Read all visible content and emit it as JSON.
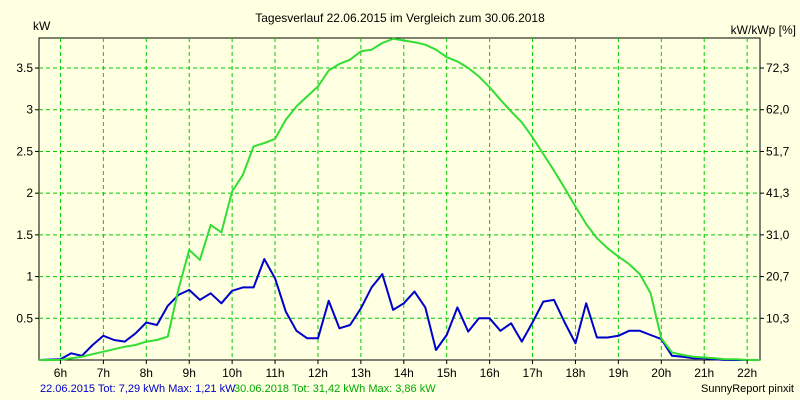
{
  "chart_data": {
    "type": "line",
    "title": "Tagesverlauf 22.06.2015 im Vergleich zum 30.06.2018",
    "ylabel_left": "kW",
    "ylabel_right": "kW/kWp [%]",
    "x_tick_labels": [
      "6h",
      "7h",
      "8h",
      "9h",
      "10h",
      "11h",
      "12h",
      "13h",
      "14h",
      "15h",
      "16h",
      "17h",
      "18h",
      "19h",
      "20h",
      "21h",
      "22h"
    ],
    "x_ticks": [
      6,
      7,
      8,
      9,
      10,
      11,
      12,
      13,
      14,
      15,
      16,
      17,
      18,
      19,
      20,
      21,
      22
    ],
    "xlim": [
      5.5,
      22.3
    ],
    "y_ticks_left": [
      0.5,
      1,
      1.5,
      2,
      2.5,
      3,
      3.5
    ],
    "y_tick_labels_left": [
      "0.5",
      "1",
      "1.5",
      "2",
      "2.5",
      "3",
      "3.5"
    ],
    "y_tick_labels_right": [
      "10,3",
      "20,7",
      "31,0",
      "41,3",
      "51,7",
      "62,0",
      "72,3"
    ],
    "ylim": [
      0,
      3.86
    ],
    "grid": true,
    "colors": {
      "background": "#ffffe1",
      "plot_background": "#ffffe1",
      "grid": "#00cc00",
      "series_2015": "#0000cc",
      "series_2018": "#33dd33",
      "footer_2015": "#0000cc",
      "footer_2018": "#00aa00"
    },
    "series": [
      {
        "name": "22.06.2015",
        "x": [
          5.5,
          6.0,
          6.25,
          6.5,
          6.75,
          7.0,
          7.25,
          7.5,
          7.75,
          8.0,
          8.25,
          8.5,
          8.75,
          9.0,
          9.25,
          9.5,
          9.75,
          10.0,
          10.25,
          10.5,
          10.75,
          11.0,
          11.25,
          11.5,
          11.75,
          12.0,
          12.25,
          12.5,
          12.75,
          13.0,
          13.25,
          13.5,
          13.75,
          14.0,
          14.25,
          14.5,
          14.75,
          15.0,
          15.25,
          15.5,
          15.75,
          16.0,
          16.25,
          16.5,
          16.75,
          17.0,
          17.25,
          17.5,
          17.75,
          18.0,
          18.25,
          18.5,
          18.75,
          19.0,
          19.25,
          19.5,
          19.75,
          20.0,
          20.25,
          20.5,
          20.75,
          21.0,
          21.25,
          21.5,
          21.75,
          22.0,
          22.3
        ],
        "values": [
          0.0,
          0.01,
          0.08,
          0.05,
          0.18,
          0.29,
          0.24,
          0.22,
          0.32,
          0.45,
          0.42,
          0.65,
          0.78,
          0.84,
          0.72,
          0.8,
          0.68,
          0.83,
          0.87,
          0.87,
          1.21,
          0.98,
          0.58,
          0.35,
          0.26,
          0.26,
          0.71,
          0.38,
          0.42,
          0.62,
          0.87,
          1.03,
          0.6,
          0.68,
          0.82,
          0.63,
          0.12,
          0.3,
          0.63,
          0.34,
          0.5,
          0.5,
          0.35,
          0.44,
          0.22,
          0.45,
          0.7,
          0.72,
          0.45,
          0.2,
          0.68,
          0.27,
          0.27,
          0.29,
          0.35,
          0.35,
          0.3,
          0.25,
          0.05,
          0.04,
          0.02,
          0.02,
          0.01,
          0.0,
          0.0,
          0.0,
          0.0
        ]
      },
      {
        "name": "30.06.2018",
        "x": [
          5.5,
          6.0,
          6.25,
          6.5,
          6.75,
          7.0,
          7.25,
          7.5,
          7.75,
          8.0,
          8.25,
          8.5,
          8.75,
          9.0,
          9.25,
          9.5,
          9.75,
          10.0,
          10.25,
          10.5,
          10.75,
          11.0,
          11.25,
          11.5,
          11.75,
          12.0,
          12.25,
          12.5,
          12.75,
          13.0,
          13.25,
          13.5,
          13.75,
          14.0,
          14.25,
          14.5,
          14.75,
          15.0,
          15.25,
          15.5,
          15.75,
          16.0,
          16.25,
          16.5,
          16.75,
          17.0,
          17.25,
          17.5,
          17.75,
          18.0,
          18.25,
          18.5,
          18.75,
          19.0,
          19.25,
          19.5,
          19.75,
          20.0,
          20.25,
          20.5,
          20.75,
          21.0,
          21.25,
          21.5,
          21.75,
          22.0,
          22.3
        ],
        "values": [
          0.0,
          0.0,
          0.02,
          0.04,
          0.07,
          0.1,
          0.13,
          0.16,
          0.18,
          0.22,
          0.24,
          0.28,
          0.85,
          1.32,
          1.2,
          1.62,
          1.53,
          2.02,
          2.22,
          2.56,
          2.6,
          2.65,
          2.88,
          3.04,
          3.16,
          3.28,
          3.47,
          3.55,
          3.6,
          3.7,
          3.72,
          3.8,
          3.85,
          3.83,
          3.81,
          3.78,
          3.72,
          3.63,
          3.58,
          3.5,
          3.4,
          3.27,
          3.12,
          2.98,
          2.85,
          2.67,
          2.47,
          2.27,
          2.06,
          1.84,
          1.63,
          1.46,
          1.34,
          1.24,
          1.15,
          1.03,
          0.8,
          0.26,
          0.09,
          0.06,
          0.04,
          0.03,
          0.02,
          0.01,
          0.01,
          0.0,
          0.0
        ]
      }
    ]
  },
  "footer": {
    "left_2015": "22.06.2015 Tot: 7,29 kWh Max: 1,21 kW",
    "left_2018": "30.06.2018 Tot: 31,42 kWh Max: 3,86 kW",
    "credit": "SunnyReport pinxit"
  }
}
